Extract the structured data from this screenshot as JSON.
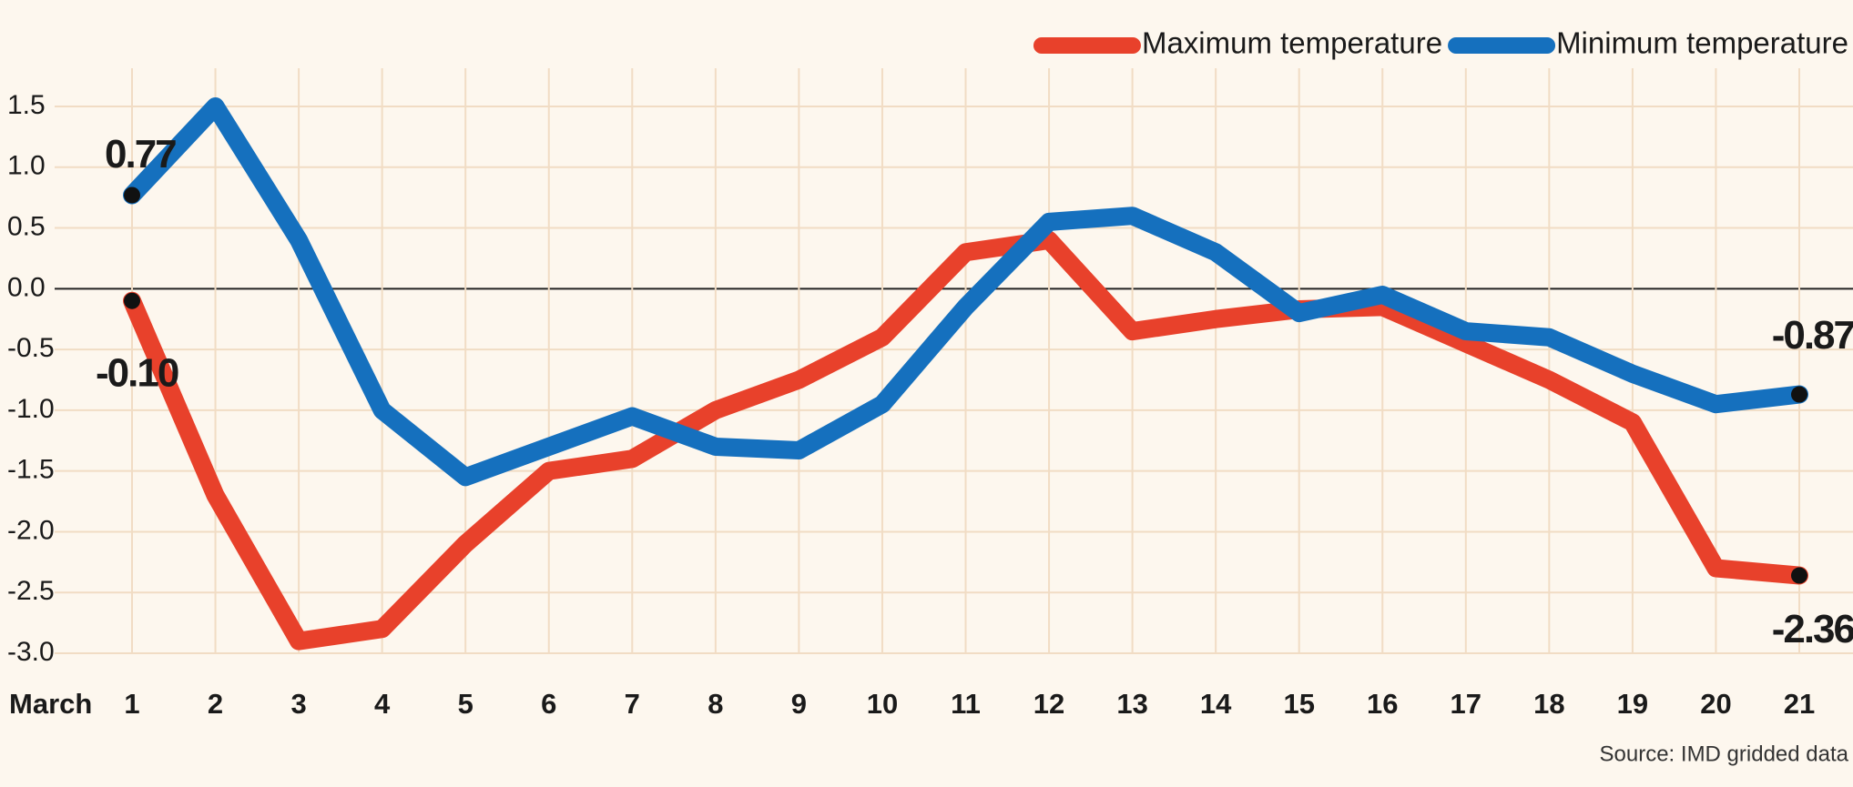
{
  "chart_data": {
    "type": "line",
    "x_label": "March",
    "categories": [
      "1",
      "2",
      "3",
      "4",
      "5",
      "6",
      "7",
      "8",
      "9",
      "10",
      "11",
      "12",
      "13",
      "14",
      "15",
      "16",
      "17",
      "18",
      "19",
      "20",
      "21"
    ],
    "series": [
      {
        "name": "Maximum temperature",
        "color": "#e8412b",
        "values": [
          -0.1,
          -1.7,
          -2.9,
          -2.8,
          -2.1,
          -1.5,
          -1.4,
          -1.0,
          -0.75,
          -0.4,
          0.3,
          0.4,
          -0.35,
          -0.25,
          -0.17,
          -0.15,
          -0.45,
          -0.75,
          -1.1,
          -2.3,
          -2.36
        ],
        "value_labels": [
          "-0.10",
          null,
          null,
          null,
          null,
          null,
          null,
          null,
          null,
          null,
          null,
          null,
          null,
          null,
          null,
          null,
          null,
          null,
          null,
          null,
          "-2.36"
        ]
      },
      {
        "name": "Minimum temperature",
        "color": "#1570be",
        "values": [
          0.77,
          1.5,
          0.4,
          -1.0,
          -1.55,
          -1.3,
          -1.05,
          -1.3,
          -1.33,
          -0.95,
          -0.15,
          0.55,
          0.6,
          0.3,
          -0.2,
          -0.05,
          -0.35,
          -0.4,
          -0.7,
          -0.95,
          -0.87
        ],
        "value_labels": [
          "0.77",
          null,
          null,
          null,
          null,
          null,
          null,
          null,
          null,
          null,
          null,
          null,
          null,
          null,
          null,
          null,
          null,
          null,
          null,
          null,
          "-0.87"
        ]
      }
    ],
    "ylim": [
      -3.0,
      1.5
    ],
    "yticks": [
      1.5,
      {
        "value": 1.0,
        "label": "1.0"
      },
      0.5,
      {
        "value": 0.0,
        "label": "0.0"
      },
      -0.5,
      {
        "value": -1.0,
        "label": "-1.0"
      },
      -1.5,
      {
        "value": -2.0,
        "label": "-2.0"
      },
      -2.5,
      {
        "value": -3.0,
        "label": "-3.0"
      }
    ],
    "grid": true,
    "legend": "top-right",
    "source": "Source: IMD gridded data"
  }
}
